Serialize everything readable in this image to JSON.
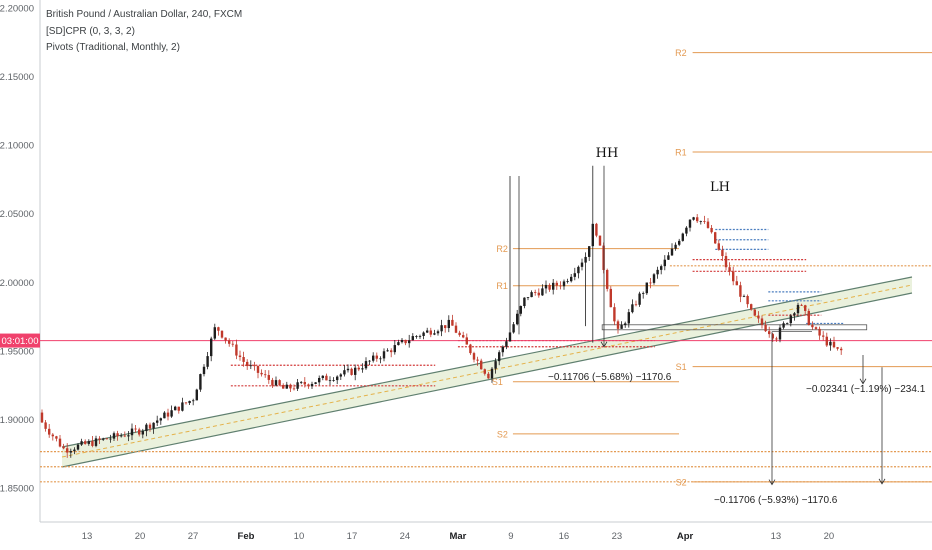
{
  "header": {
    "title": "British Pound / Australian Dollar, 240, FXCM",
    "indicator1": "[SD]CPR (0, 3, 3, 2)",
    "indicator2": "Pivots (Traditional, Monthly, 2)"
  },
  "current_price_label": "03:01:00",
  "colors": {
    "up_candle": "#1e1e1e",
    "down_candle": "#c0392b",
    "pivot": "#e39a52",
    "cpr_red": "#d23a3a",
    "cpr_blue": "#4a7dbf",
    "current_price": "#f0416c",
    "channel_fill": "#e6eed7",
    "channel_line": "#5f7f6f",
    "axis_text": "#5f6368"
  },
  "chart_data": {
    "type": "candlestick",
    "y_axis": {
      "ticks": [
        "2.20000",
        "2.15000",
        "2.10000",
        "2.05000",
        "2.00000",
        "1.95000",
        "1.90000",
        "1.85000"
      ],
      "range": [
        1.825,
        2.205
      ]
    },
    "x_axis": {
      "ticks": [
        "13",
        "20",
        "27",
        "Feb",
        "10",
        "17",
        "24",
        "Mar",
        "9",
        "16",
        "23",
        "Apr",
        "13",
        "20"
      ],
      "bold_ticks": [
        "Feb",
        "Mar",
        "Apr"
      ]
    },
    "current_price": 1.9575,
    "pivot_labels": [
      {
        "label": "R2",
        "value": 2.1675
      },
      {
        "label": "R1",
        "value": 2.095
      },
      {
        "label": "R2",
        "value": 2.0245
      },
      {
        "label": "R1",
        "value": 1.9975
      },
      {
        "label": "S1",
        "value": 1.9275
      },
      {
        "label": "S2",
        "value": 1.8895
      },
      {
        "label": "S1",
        "value": 1.9385
      },
      {
        "label": "S2",
        "value": 1.8545
      }
    ],
    "annotations": {
      "hh": "HH",
      "lh": "LH",
      "measure1": "−0.11706 (−5.68%) −1170.6",
      "measure2": "−0.02341 (−1.19%) −234.1",
      "measure3": "−0.11706 (−5.93%) −1170.6"
    },
    "keypoints": [
      {
        "date": "Jan 6",
        "close": 1.905
      },
      {
        "date": "Jan 10",
        "close": 1.878
      },
      {
        "date": "Jan 20",
        "close": 1.892
      },
      {
        "date": "Jan 27",
        "close": 1.915
      },
      {
        "date": "Jan 30",
        "close": 1.968
      },
      {
        "date": "Feb 3",
        "close": 1.94
      },
      {
        "date": "Feb 8",
        "close": 1.922
      },
      {
        "date": "Feb 17",
        "close": 1.935
      },
      {
        "date": "Feb 25",
        "close": 1.96
      },
      {
        "date": "Mar 1",
        "close": 1.97
      },
      {
        "date": "Mar 6",
        "close": 1.932
      },
      {
        "date": "Mar 9",
        "close": 1.965
      },
      {
        "date": "Mar 11",
        "close": 1.99
      },
      {
        "date": "Mar 16",
        "close": 2.0
      },
      {
        "date": "Mar 19",
        "close": 2.02
      },
      {
        "date": "Mar 20",
        "close": 2.045
      },
      {
        "date": "Mar 23",
        "close": 1.962
      },
      {
        "date": "Mar 26",
        "close": 1.99
      },
      {
        "date": "Mar 30",
        "close": 2.02
      },
      {
        "date": "Apr 2",
        "close": 2.05
      },
      {
        "date": "Apr 4",
        "close": 2.04
      },
      {
        "date": "Apr 7",
        "close": 2.005
      },
      {
        "date": "Apr 10",
        "close": 1.975
      },
      {
        "date": "Apr 13",
        "close": 1.96
      },
      {
        "date": "Apr 16",
        "close": 1.985
      },
      {
        "date": "Apr 18",
        "close": 1.965
      },
      {
        "date": "Apr 21",
        "close": 1.95
      }
    ]
  }
}
